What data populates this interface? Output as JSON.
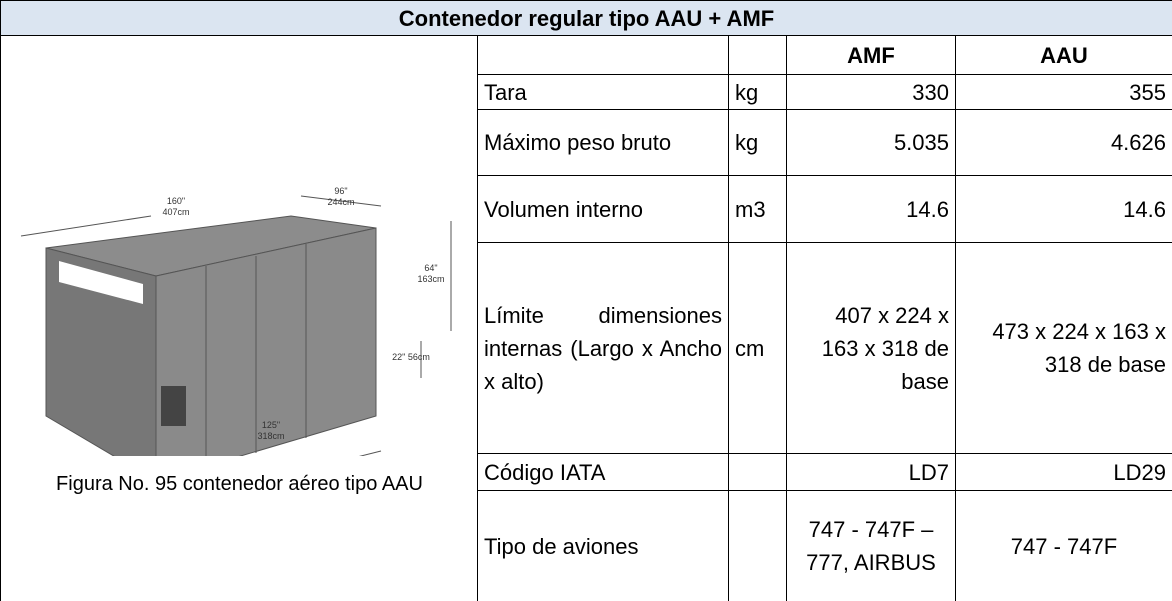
{
  "title": "Contenedor regular tipo AAU + AMF",
  "figure": {
    "caption": "Figura No. 95 contenedor aéreo tipo AAU",
    "dimension_labels": [
      "160\"",
      "407cm",
      "96\"",
      "244cm",
      "64\"",
      "163cm",
      "22\" 56cm",
      "125\"",
      "318cm"
    ]
  },
  "table": {
    "columns": [
      "AMF",
      "AAU"
    ],
    "rows": [
      [
        "Tara",
        "kg",
        "330",
        "355"
      ],
      [
        "Máximo peso bruto",
        "kg",
        "5.035",
        "4.626"
      ],
      [
        "Volumen interno",
        "m3",
        "14.6",
        "14.6"
      ],
      [
        "Límite dimensiones internas (Largo x Ancho x alto)",
        "cm",
        "407 x 224 x 163 x 318 de base",
        "473 x 224 x 163 x 318 de base"
      ],
      [
        "Código IATA",
        null,
        "LD7",
        "LD29"
      ],
      [
        "Tipo de aviones",
        null,
        "747 - 747F – 777, AIRBUS",
        "747 - 747F"
      ]
    ]
  }
}
